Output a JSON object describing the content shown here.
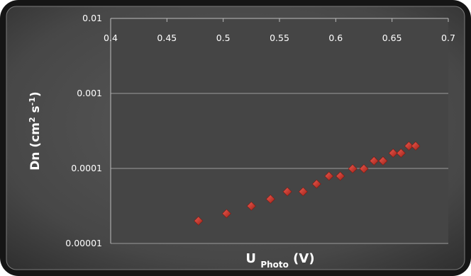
{
  "chart_data": {
    "type": "scatter",
    "title": "",
    "xlabel": {
      "main": "U",
      "sub": "Photo",
      "unit": "(V)"
    },
    "ylabel": {
      "pre": "Dn (cm",
      "sup1": "2",
      "mid": " s",
      "sup2": "-1",
      "post": ")"
    },
    "x_axis": {
      "min": 0.4,
      "max": 0.7,
      "position": "top",
      "tick_labels": [
        "0.4",
        "0.45",
        "0.5",
        "0.55",
        "0.6",
        "0.65",
        "0.7"
      ]
    },
    "y_axis": {
      "scale": "log",
      "min": 1e-05,
      "max": 0.01,
      "gridlines": true,
      "tick_labels": [
        "0.00001",
        "0.0001",
        "0.001",
        "0.01"
      ]
    },
    "legend": "none",
    "marker": {
      "shape": "diamond",
      "color": "#c0392b"
    },
    "points": [
      {
        "x": 0.478,
        "y": 2e-05
      },
      {
        "x": 0.503,
        "y": 2.5e-05
      },
      {
        "x": 0.525,
        "y": 3.15e-05
      },
      {
        "x": 0.542,
        "y": 3.9e-05
      },
      {
        "x": 0.557,
        "y": 4.9e-05
      },
      {
        "x": 0.571,
        "y": 4.9e-05
      },
      {
        "x": 0.583,
        "y": 6.2e-05
      },
      {
        "x": 0.594,
        "y": 7.9e-05
      },
      {
        "x": 0.604,
        "y": 7.9e-05
      },
      {
        "x": 0.615,
        "y": 9.9e-05
      },
      {
        "x": 0.625,
        "y": 9.9e-05
      },
      {
        "x": 0.634,
        "y": 0.000126
      },
      {
        "x": 0.642,
        "y": 0.000126
      },
      {
        "x": 0.651,
        "y": 0.00016
      },
      {
        "x": 0.658,
        "y": 0.00016
      },
      {
        "x": 0.665,
        "y": 0.000199
      },
      {
        "x": 0.671,
        "y": 0.000199
      }
    ]
  }
}
